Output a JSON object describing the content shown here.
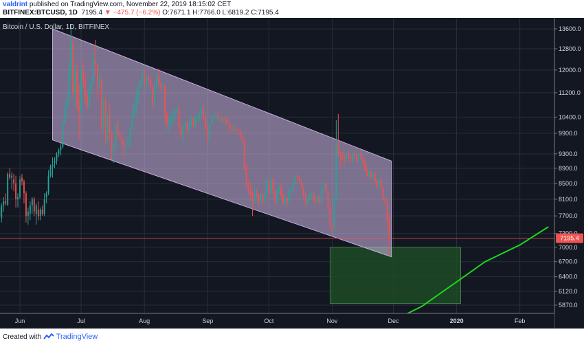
{
  "header": {
    "username": "valdrint",
    "published_text": "published on TradingView.com, November 22, 2019 18:15:02 CET",
    "symbol": "BITFINEX:BTCUSD, 1D",
    "last": "7195.4",
    "change_arrow": "▼",
    "change": "−475.7 (−6.2%)",
    "ohlc": "O:7671.1 H:7766.0 L:6819.2 C:7195.4"
  },
  "footer": {
    "created_with": "Created with",
    "brand": "TradingView"
  },
  "colors": {
    "background": "#131722",
    "up": "#26a69a",
    "down": "#ef5350",
    "channel_fill": "#d3b9ea",
    "box_fill": "#1e4a26",
    "moving_average": "#1ed61e",
    "price_line": "#ef5350"
  },
  "chart_data": {
    "type": "candlestick",
    "title": "Bitcoin / U.S. Dollar, 1D, BITFINEX",
    "x_tick_labels": [
      "Jun",
      "Jul",
      "Aug",
      "Sep",
      "Oct",
      "Nov",
      "Dec",
      "2020",
      "Feb"
    ],
    "y_tick_labels": [
      "13600.0",
      "12800.0",
      "12000.0",
      "11200.0",
      "10400.0",
      "9900.0",
      "9300.0",
      "8900.0",
      "8500.0",
      "8100.0",
      "7700.0",
      "7300.0",
      "7000.0",
      "6700.0",
      "6400.0",
      "6120.0",
      "5870.0"
    ],
    "ylim": [
      5600,
      13800
    ],
    "y_scale": "log",
    "grid": true,
    "last_price_label": "7195.4",
    "ohlc_start_date": "2019-05-22",
    "ohlc": [
      [
        7900,
        8050,
        7650,
        7700
      ],
      [
        7650,
        8000,
        7550,
        7950
      ],
      [
        7950,
        8150,
        7800,
        8050
      ],
      [
        8050,
        8250,
        7950,
        8000
      ],
      [
        7950,
        8800,
        7950,
        8750
      ],
      [
        8750,
        8900,
        8600,
        8650
      ],
      [
        8650,
        8800,
        8350,
        8700
      ],
      [
        8600,
        8750,
        8300,
        8500
      ],
      [
        8500,
        8700,
        7900,
        8100
      ],
      [
        8100,
        8250,
        7900,
        8150
      ],
      [
        8150,
        8700,
        8100,
        8600
      ],
      [
        8650,
        8750,
        8450,
        8550
      ],
      [
        8550,
        8600,
        8000,
        8250
      ],
      [
        8250,
        8300,
        7550,
        7700
      ],
      [
        7700,
        7900,
        7500,
        7800
      ],
      [
        7750,
        8050,
        7600,
        7950
      ],
      [
        7950,
        8150,
        7750,
        8100
      ],
      [
        8100,
        8150,
        7700,
        7800
      ],
      [
        7750,
        8000,
        7500,
        7950
      ],
      [
        7850,
        8050,
        7600,
        7700
      ],
      [
        7700,
        7900,
        7600,
        7850
      ],
      [
        7850,
        7950,
        7700,
        7750
      ],
      [
        7750,
        8250,
        7700,
        8100
      ],
      [
        8150,
        8300,
        8000,
        8250
      ],
      [
        8250,
        8850,
        8200,
        8700
      ],
      [
        8700,
        9000,
        8650,
        8950
      ],
      [
        8950,
        9200,
        8650,
        9000
      ],
      [
        9050,
        9200,
        8900,
        9100
      ],
      [
        9100,
        9350,
        9000,
        9300
      ],
      [
        9300,
        9450,
        9200,
        9400
      ],
      [
        9400,
        9600,
        9250,
        9500
      ],
      [
        9500,
        10300,
        9450,
        10200
      ],
      [
        10200,
        10900,
        10200,
        10700
      ],
      [
        10700,
        11200,
        10400,
        10900
      ],
      [
        10900,
        12300,
        10800,
        12100
      ],
      [
        12100,
        13800,
        11700,
        13100
      ],
      [
        13000,
        13200,
        11000,
        11200
      ],
      [
        11200,
        12200,
        10700,
        12000
      ],
      [
        12000,
        12300,
        10600,
        10800
      ],
      [
        10800,
        11500,
        9700,
        10600
      ],
      [
        10600,
        12100,
        10500,
        12000
      ],
      [
        12000,
        12300,
        11400,
        11600
      ],
      [
        11600,
        11900,
        10800,
        11050
      ],
      [
        11100,
        11300,
        10600,
        10750
      ],
      [
        10750,
        11500,
        10650,
        11300
      ],
      [
        11300,
        11750,
        11150,
        11550
      ],
      [
        11550,
        12600,
        11500,
        12450
      ],
      [
        12350,
        13150,
        11800,
        12200
      ],
      [
        12200,
        12200,
        11000,
        11450
      ],
      [
        11400,
        11950,
        11300,
        11700
      ],
      [
        11700,
        11700,
        9950,
        10100
      ],
      [
        10100,
        11150,
        9900,
        10900
      ],
      [
        10900,
        11050,
        9600,
        9700
      ],
      [
        9700,
        10500,
        9600,
        10450
      ],
      [
        10450,
        10800,
        9700,
        9900
      ],
      [
        9900,
        10000,
        9100,
        9400
      ],
      [
        9400,
        9600,
        9050,
        9450
      ],
      [
        9450,
        10200,
        9400,
        10200
      ],
      [
        10200,
        10300,
        9750,
        9850
      ],
      [
        9850,
        10000,
        9700,
        9750
      ],
      [
        9750,
        9900,
        9450,
        9600
      ],
      [
        9650,
        9750,
        9150,
        9500
      ],
      [
        9500,
        9800,
        9300,
        9550
      ],
      [
        9550,
        9750,
        9550,
        9650
      ],
      [
        9650,
        10100,
        9450,
        10050
      ],
      [
        10050,
        10650,
        10000,
        10500
      ],
      [
        10500,
        10900,
        10350,
        10800
      ],
      [
        10800,
        11300,
        10500,
        11000
      ],
      [
        11000,
        11500,
        10800,
        11400
      ],
      [
        11400,
        11650,
        11350,
        11600
      ],
      [
        11600,
        12100,
        11500,
        11900
      ],
      [
        11900,
        12050,
        11400,
        11500
      ],
      [
        11500,
        11850,
        11300,
        11750
      ],
      [
        11750,
        11800,
        11450,
        11650
      ],
      [
        11650,
        11750,
        11300,
        11400
      ],
      [
        11400,
        11450,
        10650,
        10800
      ],
      [
        10800,
        11550,
        10750,
        11450
      ],
      [
        11450,
        11900,
        11300,
        11800
      ],
      [
        11800,
        12050,
        11350,
        11500
      ],
      [
        11500,
        11550,
        11300,
        11400
      ],
      [
        11400,
        11550,
        11350,
        11450
      ],
      [
        11450,
        11500,
        10200,
        10500
      ],
      [
        10500,
        10550,
        10000,
        10200
      ],
      [
        10200,
        10450,
        9900,
        10300
      ],
      [
        10300,
        10500,
        10050,
        10400
      ],
      [
        10400,
        10600,
        10150,
        10450
      ],
      [
        10450,
        10650,
        10300,
        10600
      ],
      [
        10600,
        10750,
        10450,
        10700
      ],
      [
        10650,
        10750,
        9900,
        10100
      ],
      [
        10100,
        10150,
        9750,
        9800
      ],
      [
        9800,
        10150,
        9500,
        10100
      ],
      [
        10100,
        10300,
        10000,
        10200
      ],
      [
        10200,
        10300,
        9900,
        10000
      ],
      [
        10000,
        10250,
        9950,
        10200
      ],
      [
        10200,
        10450,
        10100,
        10350
      ],
      [
        10350,
        10400,
        10050,
        10100
      ],
      [
        10100,
        10450,
        10050,
        10400
      ],
      [
        10350,
        10450,
        10300,
        10400
      ],
      [
        10400,
        10550,
        10250,
        10500
      ],
      [
        10500,
        10750,
        10350,
        10650
      ],
      [
        10650,
        10800,
        10300,
        10400
      ],
      [
        10400,
        10450,
        10000,
        10100
      ],
      [
        10100,
        10200,
        9600,
        9700
      ],
      [
        9700,
        10250,
        9600,
        10200
      ],
      [
        10200,
        10450,
        10150,
        10400
      ],
      [
        10400,
        10500,
        10250,
        10400
      ],
      [
        10400,
        10550,
        10250,
        10450
      ],
      [
        10450,
        10550,
        10300,
        10350
      ],
      [
        10350,
        10450,
        10250,
        10400
      ],
      [
        10400,
        10450,
        10250,
        10300
      ],
      [
        10300,
        10400,
        10200,
        10350
      ],
      [
        10350,
        10450,
        10150,
        10250
      ],
      [
        10250,
        10350,
        10150,
        10200
      ],
      [
        10200,
        10200,
        9900,
        10050
      ],
      [
        10050,
        10100,
        9950,
        10000
      ],
      [
        10000,
        10150,
        9900,
        10100
      ],
      [
        10050,
        10150,
        9950,
        10000
      ],
      [
        10000,
        10050,
        9800,
        9950
      ],
      [
        9950,
        10000,
        9700,
        9800
      ],
      [
        9800,
        9850,
        9600,
        9700
      ],
      [
        9700,
        9700,
        8800,
        8900
      ],
      [
        8950,
        9000,
        8350,
        8450
      ],
      [
        8450,
        8600,
        8200,
        8350
      ],
      [
        8350,
        8500,
        8100,
        8200
      ],
      [
        8200,
        8300,
        7700,
        8050
      ],
      [
        8050,
        8400,
        8000,
        8250
      ],
      [
        8250,
        8350,
        8150,
        8200
      ],
      [
        8200,
        8250,
        7950,
        8050
      ],
      [
        8050,
        8250,
        8000,
        8200
      ],
      [
        8200,
        8250,
        7950,
        8050
      ],
      [
        8050,
        8300,
        8000,
        8200
      ],
      [
        8200,
        8650,
        8150,
        8600
      ],
      [
        8550,
        8600,
        8150,
        8250
      ],
      [
        8250,
        8650,
        8200,
        8600
      ],
      [
        8600,
        8650,
        8200,
        8300
      ],
      [
        8300,
        8350,
        7950,
        8050
      ],
      [
        8050,
        8400,
        8000,
        8300
      ],
      [
        8300,
        8450,
        8250,
        8400
      ],
      [
        8400,
        8500,
        8150,
        8200
      ],
      [
        8200,
        8250,
        7950,
        8000
      ],
      [
        8000,
        8150,
        7950,
        8100
      ],
      [
        8100,
        8150,
        7950,
        8050
      ],
      [
        8050,
        8350,
        8000,
        8300
      ],
      [
        8300,
        8400,
        8250,
        8350
      ],
      [
        8350,
        8600,
        8200,
        8500
      ],
      [
        8500,
        8750,
        8450,
        8700
      ],
      [
        8700,
        8800,
        8550,
        8650
      ],
      [
        8650,
        8700,
        8500,
        8550
      ],
      [
        8550,
        8600,
        8350,
        8400
      ],
      [
        8400,
        8450,
        8100,
        8200
      ],
      [
        8200,
        8250,
        7900,
        8000
      ],
      [
        8000,
        8150,
        7950,
        8100
      ],
      [
        8100,
        8250,
        8050,
        8200
      ],
      [
        8200,
        8300,
        8100,
        8250
      ],
      [
        8250,
        8300,
        8050,
        8100
      ],
      [
        8100,
        8150,
        8000,
        8050
      ],
      [
        8050,
        8200,
        8000,
        8150
      ],
      [
        8150,
        8200,
        7950,
        8050
      ],
      [
        8050,
        8400,
        7950,
        8350
      ],
      [
        8350,
        8550,
        8300,
        8500
      ],
      [
        8500,
        8550,
        8250,
        8300
      ],
      [
        8300,
        8300,
        7800,
        7900
      ],
      [
        7900,
        8050,
        7400,
        7450
      ],
      [
        7450,
        7550,
        7350,
        7400
      ],
      [
        7400,
        8200,
        7350,
        8100
      ],
      [
        8100,
        10300,
        8050,
        9600
      ],
      [
        9600,
        10500,
        9200,
        9300
      ],
      [
        9300,
        9400,
        8900,
        9250
      ],
      [
        9250,
        9350,
        9100,
        9200
      ],
      [
        9200,
        9300,
        9000,
        9150
      ],
      [
        9150,
        9350,
        9100,
        9300
      ],
      [
        9300,
        9400,
        9100,
        9200
      ],
      [
        9200,
        9250,
        9050,
        9150
      ],
      [
        9150,
        9350,
        9000,
        9300
      ],
      [
        9300,
        9400,
        9150,
        9250
      ],
      [
        9250,
        9300,
        9050,
        9100
      ],
      [
        9100,
        9350,
        9050,
        9300
      ],
      [
        9300,
        9400,
        9150,
        9200
      ],
      [
        9200,
        9250,
        9000,
        9100
      ],
      [
        9100,
        9150,
        8800,
        8850
      ],
      [
        8850,
        8950,
        8650,
        8700
      ],
      [
        8700,
        8850,
        8650,
        8800
      ],
      [
        8800,
        8850,
        8600,
        8650
      ],
      [
        8650,
        8800,
        8600,
        8750
      ],
      [
        8750,
        8800,
        8500,
        8550
      ],
      [
        8550,
        8600,
        8350,
        8400
      ],
      [
        8400,
        8650,
        8300,
        8600
      ],
      [
        8600,
        8650,
        8350,
        8400
      ],
      [
        8400,
        8450,
        8050,
        8100
      ],
      [
        8100,
        8150,
        7950,
        8050
      ],
      [
        8050,
        8100,
        7400,
        7600
      ],
      [
        7650,
        7766,
        6819,
        7195
      ]
    ],
    "annotations": {
      "descending_channel": {
        "upper": [
          [
            "2019-06-17",
            13600
          ],
          [
            "2019-11-30",
            9100
          ]
        ],
        "lower": [
          [
            "2019-06-17",
            9700
          ],
          [
            "2019-11-30",
            6800
          ]
        ]
      },
      "support_box": {
        "from": "2019-10-31",
        "to": "2020-01-03",
        "high": 7000,
        "low": 5900
      },
      "horizontal_line": 7195.4,
      "moving_average": [
        [
          "2019-12-01",
          5600
        ],
        [
          "2019-12-15",
          5850
        ],
        [
          "2020-01-01",
          6300
        ],
        [
          "2020-01-15",
          6700
        ],
        [
          "2020-02-01",
          7050
        ],
        [
          "2020-02-15",
          7450
        ]
      ]
    }
  }
}
